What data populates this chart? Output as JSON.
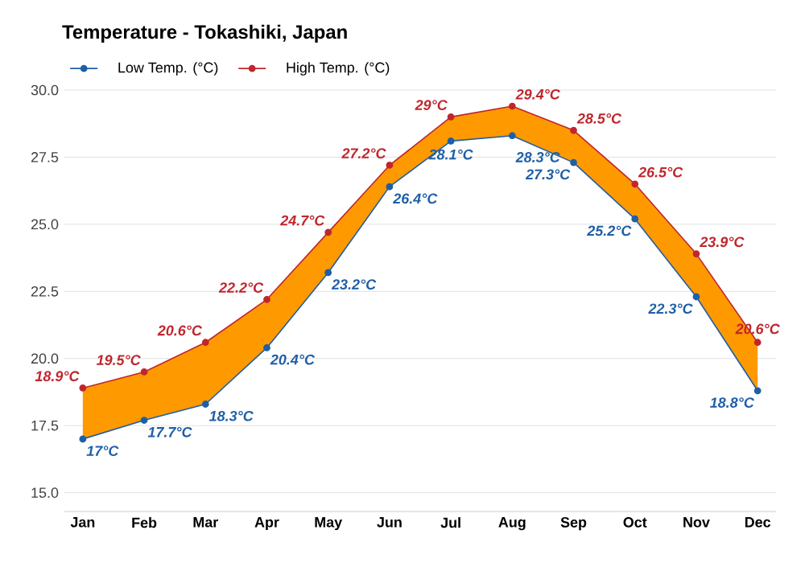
{
  "chart_data": {
    "type": "line",
    "title": "Temperature - Tokashiki, Japan",
    "categories": [
      "Jan",
      "Feb",
      "Mar",
      "Apr",
      "May",
      "Jun",
      "Jul",
      "Aug",
      "Sep",
      "Oct",
      "Nov",
      "Dec"
    ],
    "series": [
      {
        "name": "Low Temp. (°C)",
        "color": "#1f5fa6",
        "values": [
          17,
          17.7,
          18.3,
          20.4,
          23.2,
          26.4,
          28.1,
          28.3,
          27.3,
          25.2,
          22.3,
          18.8
        ],
        "value_labels": [
          "17°C",
          "17.7°C",
          "18.3°C",
          "20.4°C",
          "23.2°C",
          "26.4°C",
          "28.1°C",
          "28.3°C",
          "27.3°C",
          "25.2°C",
          "22.3°C",
          "18.8°C"
        ]
      },
      {
        "name": "High Temp. (°C)",
        "color": "#c0262d",
        "values": [
          18.9,
          19.5,
          20.6,
          22.2,
          24.7,
          27.2,
          29,
          29.4,
          28.5,
          26.5,
          23.9,
          20.6
        ],
        "value_labels": [
          "18.9°C",
          "19.5°C",
          "20.6°C",
          "22.2°C",
          "24.7°C",
          "27.2°C",
          "29°C",
          "29.4°C",
          "28.5°C",
          "26.5°C",
          "23.9°C",
          "20.6°C"
        ]
      }
    ],
    "ylim": [
      14.3,
      30
    ],
    "yticks": [
      {
        "value": 15,
        "label": "15.0"
      },
      {
        "value": 17.5,
        "label": "17.5"
      },
      {
        "value": 20,
        "label": "20.0"
      },
      {
        "value": 22.5,
        "label": "22.5"
      },
      {
        "value": 25,
        "label": "25.0"
      },
      {
        "value": 27.5,
        "label": "27.5"
      },
      {
        "value": 30,
        "label": "30.0"
      }
    ],
    "grid": "y",
    "legend": "top left",
    "marker": "circle",
    "line_style": "solid"
  }
}
